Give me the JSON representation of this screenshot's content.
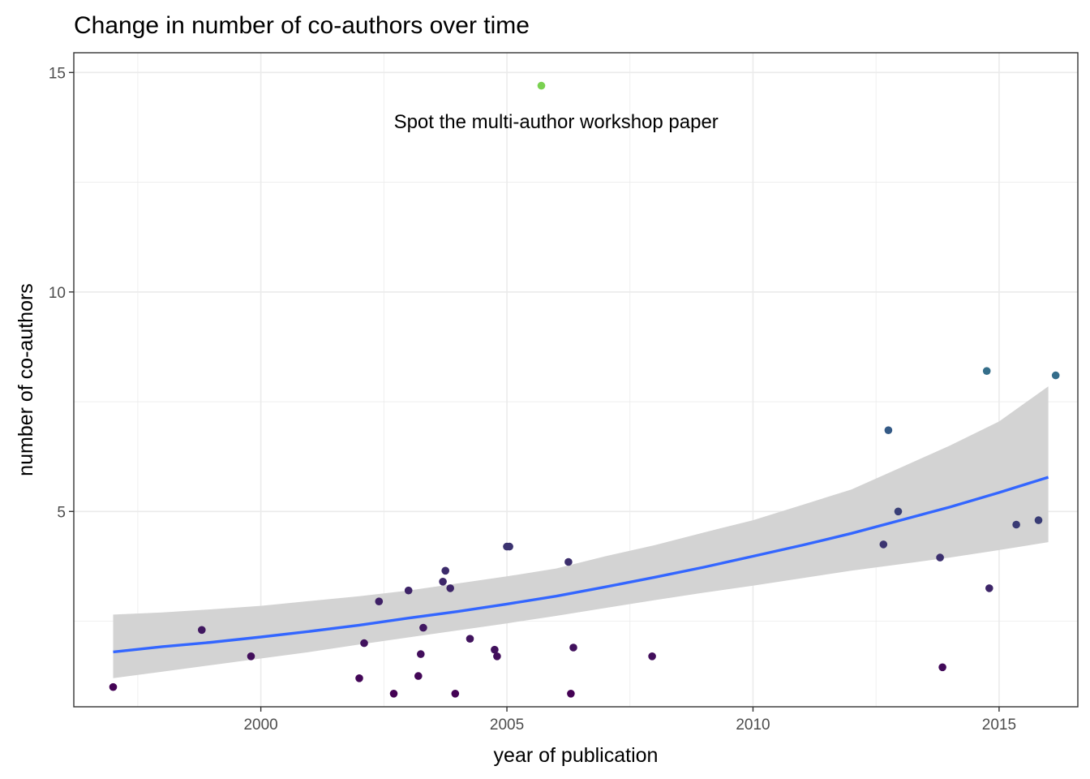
{
  "chart_data": {
    "type": "scatter",
    "title": "Change in number of co-authors over time",
    "xlabel": "year of publication",
    "ylabel": "number of co-authors",
    "xlim": [
      1996.2,
      2016.6
    ],
    "ylim": [
      0.55,
      15.45
    ],
    "x_ticks": [
      2000,
      2005,
      2010,
      2015
    ],
    "x_tick_labels": [
      "2000",
      "2005",
      "2010",
      "2015"
    ],
    "x_minor_ticks": [
      1997.5,
      2002.5,
      2007.5,
      2012.5
    ],
    "y_ticks": [
      5,
      10,
      15
    ],
    "y_tick_labels": [
      "5",
      "10",
      "15"
    ],
    "y_minor_ticks": [
      2.5,
      7.5,
      12.5
    ],
    "grid": true,
    "legend": "none",
    "colors": {
      "low": "#440154",
      "mid": "#31688e",
      "high": "#7ad151",
      "trend_line": "#3366ff",
      "ribbon": "#d3d3d3",
      "panel_border": "#333333",
      "grid": "#ebebeb"
    },
    "annotation": {
      "text": "Spot the multi-author workshop paper",
      "x": 2006.0,
      "y": 13.9
    },
    "points": [
      {
        "x": 1997.0,
        "y": 1.0
      },
      {
        "x": 1998.8,
        "y": 2.3
      },
      {
        "x": 1999.8,
        "y": 1.7
      },
      {
        "x": 2002.0,
        "y": 1.2
      },
      {
        "x": 2002.1,
        "y": 2.0
      },
      {
        "x": 2002.4,
        "y": 2.95
      },
      {
        "x": 2002.7,
        "y": 0.85
      },
      {
        "x": 2003.0,
        "y": 3.2
      },
      {
        "x": 2003.2,
        "y": 1.25
      },
      {
        "x": 2003.25,
        "y": 1.75
      },
      {
        "x": 2003.3,
        "y": 2.35
      },
      {
        "x": 2003.7,
        "y": 3.4
      },
      {
        "x": 2003.75,
        "y": 3.65
      },
      {
        "x": 2003.85,
        "y": 3.25
      },
      {
        "x": 2003.95,
        "y": 0.85
      },
      {
        "x": 2004.25,
        "y": 2.1
      },
      {
        "x": 2004.75,
        "y": 1.85
      },
      {
        "x": 2004.8,
        "y": 1.7
      },
      {
        "x": 2005.0,
        "y": 4.2
      },
      {
        "x": 2005.05,
        "y": 4.2
      },
      {
        "x": 2005.7,
        "y": 14.7
      },
      {
        "x": 2006.25,
        "y": 3.85
      },
      {
        "x": 2006.3,
        "y": 0.85
      },
      {
        "x": 2006.35,
        "y": 1.9
      },
      {
        "x": 2007.95,
        "y": 1.7
      },
      {
        "x": 2012.65,
        "y": 4.25
      },
      {
        "x": 2012.75,
        "y": 6.85
      },
      {
        "x": 2012.95,
        "y": 5.0
      },
      {
        "x": 2013.8,
        "y": 3.95
      },
      {
        "x": 2013.85,
        "y": 1.45
      },
      {
        "x": 2014.75,
        "y": 8.2
      },
      {
        "x": 2014.8,
        "y": 3.25
      },
      {
        "x": 2015.35,
        "y": 4.7
      },
      {
        "x": 2015.8,
        "y": 4.8
      },
      {
        "x": 2016.15,
        "y": 8.1
      }
    ],
    "trend": {
      "method": "smooth",
      "x": [
        1997,
        1998,
        1999,
        2000,
        2001,
        2002,
        2003,
        2004,
        2005,
        2006,
        2007,
        2008,
        2009,
        2010,
        2011,
        2012,
        2013,
        2014,
        2015,
        2016
      ],
      "y": [
        1.8,
        1.92,
        2.02,
        2.14,
        2.27,
        2.41,
        2.57,
        2.72,
        2.89,
        3.07,
        3.28,
        3.5,
        3.73,
        3.98,
        4.23,
        4.5,
        4.8,
        5.1,
        5.43,
        5.78
      ],
      "lower": [
        1.2,
        1.35,
        1.5,
        1.65,
        1.8,
        1.97,
        2.13,
        2.29,
        2.45,
        2.62,
        2.8,
        2.98,
        3.15,
        3.31,
        3.48,
        3.65,
        3.8,
        3.95,
        4.12,
        4.3
      ],
      "upper": [
        2.65,
        2.7,
        2.77,
        2.85,
        2.96,
        3.07,
        3.2,
        3.36,
        3.52,
        3.7,
        3.98,
        4.23,
        4.52,
        4.8,
        5.15,
        5.5,
        6.0,
        6.5,
        7.05,
        7.85
      ]
    }
  }
}
